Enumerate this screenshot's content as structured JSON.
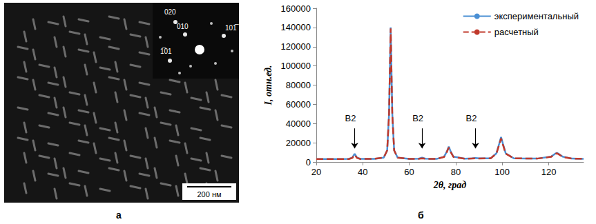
{
  "chart_data": {
    "type": "line",
    "panel_letter": "б",
    "x_label": "2θ, град",
    "y_label": "I, отн.ед.",
    "x": [
      20,
      30,
      34,
      35.5,
      36.5,
      37.5,
      39,
      45,
      49,
      50.5,
      51.3,
      52,
      52.7,
      53.5,
      55,
      60,
      64,
      65.5,
      67,
      72,
      75,
      76.2,
      77,
      77.8,
      79,
      84,
      87,
      88.5,
      90,
      95,
      97.5,
      98.7,
      99.5,
      100.3,
      101.5,
      105,
      115,
      121,
      122.7,
      123.5,
      124.3,
      126,
      130,
      135
    ],
    "series": [
      {
        "name": "экспериментальный",
        "color": "#4a8fd4",
        "line_style": "solid",
        "values": [
          3000,
          3000,
          3200,
          4500,
          8500,
          4500,
          3200,
          3300,
          4500,
          12000,
          50000,
          140000,
          50000,
          12000,
          4500,
          3200,
          3400,
          4500,
          3400,
          3300,
          5500,
          11000,
          16000,
          11000,
          5500,
          3400,
          3800,
          4200,
          3800,
          3800,
          9000,
          19000,
          26000,
          19000,
          9000,
          3800,
          3500,
          5500,
          8500,
          9500,
          8500,
          5500,
          3500,
          3300
        ]
      },
      {
        "name": "расчетный",
        "color": "#c0392b",
        "line_style": "dashed",
        "values": [
          3000,
          3000,
          3100,
          4200,
          7500,
          4200,
          3100,
          3300,
          4500,
          12000,
          49000,
          139000,
          49000,
          12000,
          4500,
          3200,
          3300,
          3800,
          3300,
          3300,
          5200,
          10500,
          15000,
          10500,
          5200,
          3400,
          3600,
          3700,
          3600,
          3800,
          8600,
          18000,
          24500,
          18000,
          8600,
          3800,
          3500,
          5300,
          8000,
          9000,
          8000,
          5300,
          3500,
          3300
        ]
      }
    ],
    "annotations": [
      {
        "text": "B2",
        "x": 36.5,
        "y": 35000
      },
      {
        "text": "B2",
        "x": 65.5,
        "y": 35000
      },
      {
        "text": "B2",
        "x": 88.5,
        "y": 35000
      }
    ],
    "xlim": [
      20,
      135
    ],
    "xticks": [
      20,
      40,
      60,
      80,
      100,
      120
    ],
    "ylim": [
      0,
      160000
    ],
    "yticks": [
      0,
      20000,
      40000,
      60000,
      80000,
      100000,
      120000,
      140000,
      160000
    ],
    "grid": false,
    "legend": "upper right"
  },
  "image_panel": {
    "panel_letter": "а",
    "scale_bar": "200 нм",
    "diffraction_spots": [
      "020",
      "010",
      "101̅",
      "1̅01"
    ]
  }
}
